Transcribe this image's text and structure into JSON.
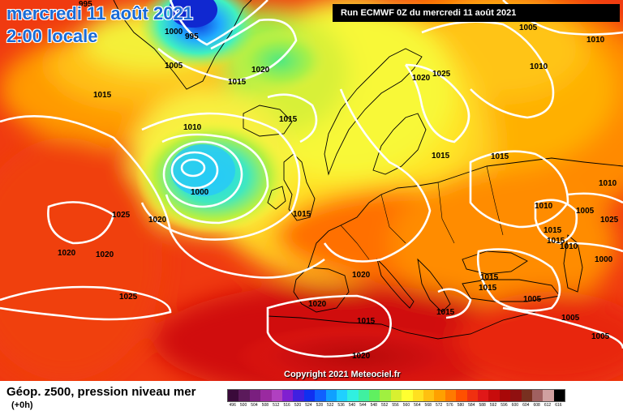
{
  "header": {
    "title_date": "mercredi 11 août 2021",
    "title_time": "2:00 locale",
    "run_info": "Run ECMWF 0Z du mercredi 11 août 2021"
  },
  "copyright": "Copyright 2021 Meteociel.fr",
  "footer": {
    "title": "Géop. z500, pression niveau mer",
    "subtitle": "(+0h)"
  },
  "legend": {
    "values": [
      "496",
      "500",
      "504",
      "508",
      "512",
      "516",
      "520",
      "524",
      "528",
      "532",
      "536",
      "540",
      "544",
      "548",
      "552",
      "556",
      "560",
      "564",
      "568",
      "572",
      "576",
      "580",
      "584",
      "588",
      "592",
      "596",
      "600",
      "604",
      "608",
      "612",
      "616"
    ],
    "colors": [
      "#3a0a3a",
      "#5b1a5b",
      "#7a1f7f",
      "#9a2aa0",
      "#b040c0",
      "#8020d0",
      "#4020e0",
      "#1030f0",
      "#1060ff",
      "#10a0ff",
      "#20d0ff",
      "#30f0e0",
      "#40f0a0",
      "#60f060",
      "#a0f040",
      "#d8f030",
      "#ffff30",
      "#ffe020",
      "#ffc010",
      "#ffa000",
      "#ff7a00",
      "#ff5000",
      "#f03010",
      "#e01818",
      "#c80c0c",
      "#a80808",
      "#901010",
      "#783020",
      "#a06060",
      "#d0a0a0",
      "#000000"
    ]
  },
  "isobar_labels": [
    "995",
    "1000",
    "995",
    "1005",
    "1020",
    "1015",
    "1015",
    "1010",
    "1000",
    "1015",
    "1025",
    "1020",
    "1020",
    "1020",
    "1025",
    "1015",
    "1020",
    "1025",
    "1015",
    "1015",
    "1005",
    "1010",
    "1010",
    "1005",
    "1010",
    "1015",
    "1015",
    "1010",
    "1010",
    "1000",
    "1020",
    "1015",
    "1015",
    "1005",
    "1020",
    "1015",
    "1015",
    "1005",
    "1005",
    "1020",
    "1025"
  ],
  "colors": {
    "title": "#1a6bd6",
    "isobar": "#ffffff",
    "coast": "#000000"
  }
}
